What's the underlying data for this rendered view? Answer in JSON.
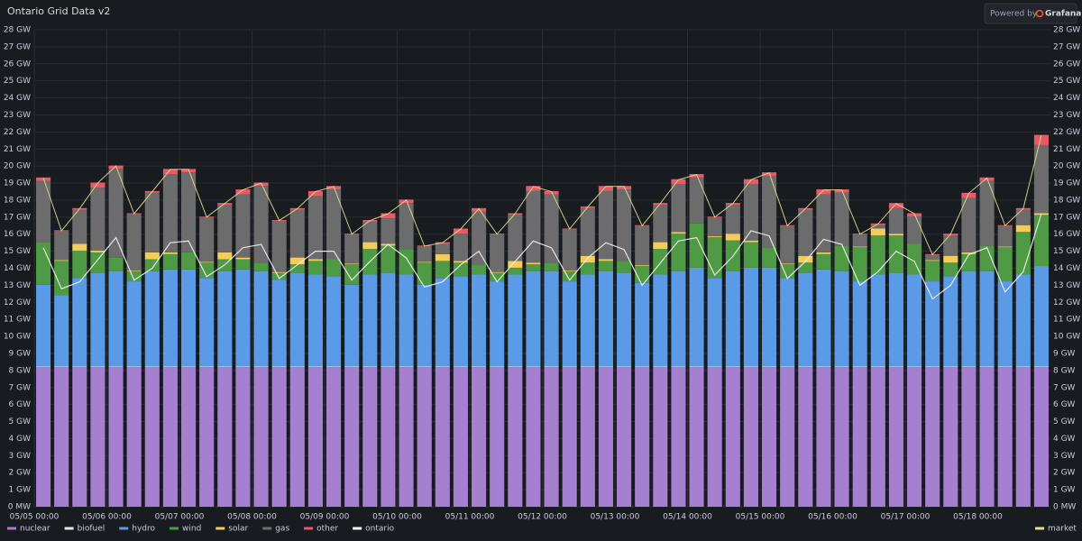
{
  "branding": {
    "prefix": "Powered by",
    "name": "Grafana"
  },
  "chart_data": {
    "type": "bar",
    "stacked": true,
    "title": "Ontario Grid Data v2",
    "grid": true,
    "categories": [
      "05/05 00:00",
      null,
      null,
      null,
      "05/06 00:00",
      null,
      null,
      null,
      "05/07 00:00",
      null,
      null,
      null,
      "05/08 00:00",
      null,
      null,
      null,
      "05/09 00:00",
      null,
      null,
      null,
      "05/10 00:00",
      null,
      null,
      null,
      "05/11 00:00",
      null,
      null,
      null,
      "05/12 00:00",
      null,
      null,
      null,
      "05/13 00:00",
      null,
      null,
      null,
      "05/14 00:00",
      null,
      null,
      null,
      "05/15 00:00",
      null,
      null,
      null,
      "05/16 00:00",
      null,
      null,
      null,
      "05/17 00:00",
      null,
      null,
      null,
      "05/18 00:00",
      null,
      null,
      null
    ],
    "ylim": [
      0,
      28
    ],
    "y2lim": [
      0,
      28
    ],
    "yticks": [
      {
        "value": 0,
        "label": "0 MW"
      },
      {
        "value": 1,
        "label": "1 GW"
      },
      {
        "value": 2,
        "label": "2 GW"
      },
      {
        "value": 3,
        "label": "3 GW"
      },
      {
        "value": 4,
        "label": "4 GW"
      },
      {
        "value": 5,
        "label": "5 GW"
      },
      {
        "value": 6,
        "label": "6 GW"
      },
      {
        "value": 7,
        "label": "7 GW"
      },
      {
        "value": 8,
        "label": "8 GW"
      },
      {
        "value": 9,
        "label": "9 GW"
      },
      {
        "value": 10,
        "label": "10 GW"
      },
      {
        "value": 11,
        "label": "11 GW"
      },
      {
        "value": 12,
        "label": "12 GW"
      },
      {
        "value": 13,
        "label": "13 GW"
      },
      {
        "value": 14,
        "label": "14 GW"
      },
      {
        "value": 15,
        "label": "15 GW"
      },
      {
        "value": 16,
        "label": "16 GW"
      },
      {
        "value": 17,
        "label": "17 GW"
      },
      {
        "value": 18,
        "label": "18 GW"
      },
      {
        "value": 19,
        "label": "19 GW"
      },
      {
        "value": 20,
        "label": "20 GW"
      },
      {
        "value": 21,
        "label": "21 GW"
      },
      {
        "value": 22,
        "label": "22 GW"
      },
      {
        "value": 23,
        "label": "23 GW"
      },
      {
        "value": 24,
        "label": "24 GW"
      },
      {
        "value": 25,
        "label": "25 GW"
      },
      {
        "value": 26,
        "label": "26 GW"
      },
      {
        "value": 27,
        "label": "27 GW"
      },
      {
        "value": 28,
        "label": "28 GW"
      }
    ],
    "y2ticks": [
      {
        "value": 0,
        "label": "0 MW"
      },
      {
        "value": 1,
        "label": "1 GW"
      },
      {
        "value": 2,
        "label": "2 GW"
      },
      {
        "value": 3,
        "label": "3 GW"
      },
      {
        "value": 4,
        "label": "4 GW"
      },
      {
        "value": 5,
        "label": "5 GW"
      },
      {
        "value": 6,
        "label": "6 GW"
      },
      {
        "value": 7,
        "label": "7 GW"
      },
      {
        "value": 8,
        "label": "8 GW"
      },
      {
        "value": 9,
        "label": "9 GW"
      },
      {
        "value": 10,
        "label": "10 GW"
      },
      {
        "value": 11,
        "label": "11 GW"
      },
      {
        "value": 12,
        "label": "12 GW"
      },
      {
        "value": 13,
        "label": "13 GW"
      },
      {
        "value": 14,
        "label": "14 GW"
      },
      {
        "value": 15,
        "label": "15 GW"
      },
      {
        "value": 16,
        "label": "16 GW"
      },
      {
        "value": 17,
        "label": "17 GW"
      },
      {
        "value": 18,
        "label": "18 GW"
      },
      {
        "value": 19,
        "label": "19 GW"
      },
      {
        "value": 20,
        "label": "20 GW"
      },
      {
        "value": 21,
        "label": "21 GW"
      },
      {
        "value": 22,
        "label": "22 GW"
      },
      {
        "value": 23,
        "label": "23 GW"
      },
      {
        "value": 24,
        "label": "24 GW"
      },
      {
        "value": 25,
        "label": "25 GW"
      },
      {
        "value": 26,
        "label": "26 GW"
      },
      {
        "value": 27,
        "label": "27 GW"
      },
      {
        "value": 28,
        "label": "28 GW"
      }
    ],
    "series": [
      {
        "name": "nuclear",
        "type": "bar",
        "color": "#a57fd0",
        "values": [
          8.2,
          8.2,
          8.2,
          8.2,
          8.2,
          8.2,
          8.2,
          8.2,
          8.2,
          8.2,
          8.2,
          8.2,
          8.2,
          8.2,
          8.2,
          8.2,
          8.2,
          8.2,
          8.2,
          8.2,
          8.2,
          8.2,
          8.2,
          8.2,
          8.2,
          8.2,
          8.2,
          8.2,
          8.2,
          8.2,
          8.2,
          8.2,
          8.2,
          8.2,
          8.2,
          8.2,
          8.2,
          8.2,
          8.2,
          8.2,
          8.2,
          8.2,
          8.2,
          8.2,
          8.2,
          8.2,
          8.2,
          8.2,
          8.2,
          8.2,
          8.2,
          8.2,
          8.2,
          8.2,
          8.2,
          8.2
        ]
      },
      {
        "name": "biofuel",
        "type": "bar",
        "color": "#e8e8e8",
        "values": [
          0.03,
          0.03,
          0.03,
          0.03,
          0.03,
          0.03,
          0.03,
          0.03,
          0.03,
          0.03,
          0.03,
          0.03,
          0.03,
          0.03,
          0.03,
          0.03,
          0.03,
          0.03,
          0.03,
          0.03,
          0.03,
          0.03,
          0.03,
          0.03,
          0.03,
          0.03,
          0.03,
          0.03,
          0.03,
          0.03,
          0.03,
          0.03,
          0.03,
          0.03,
          0.03,
          0.03,
          0.03,
          0.03,
          0.03,
          0.03,
          0.03,
          0.03,
          0.03,
          0.03,
          0.03,
          0.03,
          0.03,
          0.03,
          0.03,
          0.03,
          0.03,
          0.03,
          0.03,
          0.03,
          0.03,
          0.03
        ]
      },
      {
        "name": "hydro",
        "type": "bar",
        "color": "#5b9ae6",
        "values": [
          4.8,
          4.2,
          5.2,
          5.5,
          5.6,
          5.0,
          5.6,
          5.7,
          5.7,
          5.2,
          5.6,
          5.7,
          5.6,
          5.1,
          5.5,
          5.4,
          5.3,
          4.8,
          5.4,
          5.5,
          5.4,
          4.8,
          5.2,
          5.3,
          5.4,
          5.0,
          5.4,
          5.6,
          5.6,
          5.0,
          5.4,
          5.6,
          5.5,
          4.9,
          5.4,
          5.6,
          5.8,
          5.2,
          5.6,
          5.8,
          5.8,
          5.2,
          5.5,
          5.7,
          5.6,
          5.0,
          5.4,
          5.5,
          5.4,
          5.0,
          5.3,
          5.6,
          5.6,
          5.0,
          5.4,
          5.9
        ]
      },
      {
        "name": "wind",
        "type": "bar",
        "color": "#4f9a45",
        "values": [
          2.5,
          2.0,
          1.6,
          1.2,
          0.8,
          0.6,
          0.7,
          0.9,
          1.0,
          0.9,
          0.7,
          0.6,
          0.5,
          0.4,
          0.5,
          0.8,
          1.0,
          1.2,
          1.5,
          1.6,
          1.5,
          1.3,
          1.0,
          0.8,
          0.6,
          0.5,
          0.4,
          0.4,
          0.5,
          0.6,
          0.7,
          0.6,
          0.7,
          1.0,
          1.5,
          2.2,
          2.6,
          2.4,
          1.8,
          1.5,
          1.2,
          0.8,
          0.6,
          0.9,
          1.5,
          2.0,
          2.3,
          2.2,
          1.8,
          1.2,
          0.8,
          1.0,
          1.5,
          2.0,
          2.5,
          3.0
        ]
      },
      {
        "name": "solar",
        "type": "bar",
        "color": "#f2cc5c",
        "values": [
          0,
          0.05,
          0.4,
          0.1,
          0,
          0.05,
          0.4,
          0.1,
          0,
          0.05,
          0.4,
          0.1,
          0,
          0.05,
          0.4,
          0.1,
          0,
          0.05,
          0.4,
          0.1,
          0,
          0.05,
          0.4,
          0.1,
          0,
          0.05,
          0.4,
          0.1,
          0,
          0.05,
          0.4,
          0.1,
          0,
          0.05,
          0.4,
          0.1,
          0,
          0.05,
          0.4,
          0.1,
          0,
          0.05,
          0.4,
          0.1,
          0,
          0.05,
          0.4,
          0.1,
          0,
          0.05,
          0.4,
          0.1,
          0,
          0.05,
          0.4,
          0.1
        ]
      },
      {
        "name": "gas",
        "type": "bar",
        "color": "#6c6c6c",
        "values": [
          3.6,
          1.7,
          2.0,
          3.7,
          5.2,
          3.3,
          3.5,
          4.6,
          4.7,
          2.6,
          2.8,
          3.7,
          4.5,
          3.0,
          2.8,
          3.7,
          4.1,
          1.7,
          1.2,
          1.5,
          2.7,
          0.9,
          0.6,
          1.6,
          3.1,
          2.2,
          2.7,
          4.2,
          4.0,
          2.4,
          2.8,
          4.0,
          4.2,
          2.3,
          2.2,
          2.8,
          2.7,
          1.1,
          1.7,
          3.3,
          4.2,
          2.2,
          2.7,
          3.4,
          3.1,
          0.7,
          0.2,
          1.5,
          1.6,
          0.3,
          1.2,
          3.2,
          3.8,
          1.2,
          0.9,
          4.0
        ]
      },
      {
        "name": "other",
        "type": "bar",
        "color": "#e8596a",
        "values": [
          0.2,
          0.05,
          0.1,
          0.3,
          0.2,
          0.05,
          0.1,
          0.3,
          0.2,
          0.05,
          0.1,
          0.3,
          0.2,
          0.05,
          0.1,
          0.3,
          0.2,
          0.05,
          0.1,
          0.3,
          0.2,
          0.05,
          0.1,
          0.3,
          0.2,
          0.05,
          0.1,
          0.3,
          0.2,
          0.05,
          0.1,
          0.3,
          0.2,
          0.05,
          0.1,
          0.3,
          0.2,
          0.05,
          0.1,
          0.3,
          0.2,
          0.05,
          0.1,
          0.3,
          0.2,
          0.05,
          0.1,
          0.3,
          0.2,
          0.05,
          0.1,
          0.3,
          0.2,
          0.05,
          0.1,
          0.6
        ]
      },
      {
        "name": "ontario",
        "type": "line",
        "color": "#f4f4f4",
        "values": [
          15.2,
          12.8,
          13.2,
          14.5,
          15.8,
          13.3,
          14.0,
          15.5,
          15.6,
          13.5,
          14.2,
          15.2,
          15.4,
          13.4,
          14.2,
          15.0,
          15.0,
          13.3,
          14.4,
          15.4,
          14.6,
          12.9,
          13.2,
          14.2,
          15.0,
          13.2,
          14.4,
          15.6,
          15.2,
          13.3,
          14.6,
          15.5,
          15.1,
          13.0,
          14.3,
          15.6,
          15.8,
          13.6,
          14.7,
          16.2,
          15.9,
          13.4,
          14.4,
          15.7,
          15.4,
          13.0,
          13.8,
          15.0,
          14.4,
          12.2,
          13.0,
          14.8,
          15.2,
          12.6,
          13.8,
          17.2
        ]
      },
      {
        "name": "market",
        "type": "line",
        "axis": "y2",
        "color": "#e6de8c",
        "values": [
          19.3,
          16.2,
          17.5,
          19.0,
          20.0,
          17.2,
          18.5,
          19.8,
          19.8,
          17.0,
          17.8,
          18.6,
          19.0,
          16.8,
          17.5,
          18.5,
          18.8,
          16.0,
          16.8,
          17.2,
          18.0,
          15.3,
          15.5,
          16.3,
          17.5,
          16.0,
          17.2,
          18.8,
          18.5,
          16.3,
          17.6,
          18.8,
          18.8,
          16.5,
          17.8,
          19.2,
          19.5,
          17.0,
          17.8,
          19.2,
          19.6,
          16.5,
          17.5,
          18.6,
          18.6,
          16.0,
          16.6,
          17.8,
          17.2,
          14.8,
          16.0,
          18.4,
          19.3,
          16.5,
          17.5,
          21.8
        ]
      }
    ]
  }
}
